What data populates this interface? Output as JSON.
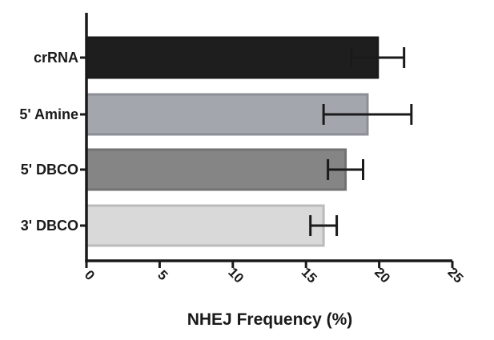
{
  "chart_data": {
    "type": "bar",
    "orientation": "horizontal",
    "categories": [
      "crRNA",
      "5' Amine",
      "5' DBCO",
      "3' DBCO"
    ],
    "values": [
      19.9,
      19.2,
      17.7,
      16.2
    ],
    "errors": [
      1.8,
      3.0,
      1.2,
      0.9
    ],
    "colors": [
      "#1e1e1e",
      "#a3a6ad",
      "#858585",
      "#d9d9d9"
    ],
    "xlabel": "NHEJ Frequency (%)",
    "ylabel": "",
    "xlim": [
      0,
      25
    ],
    "xticks": [
      "0",
      "5",
      "10",
      "15",
      "20",
      "25"
    ],
    "grid": false
  }
}
